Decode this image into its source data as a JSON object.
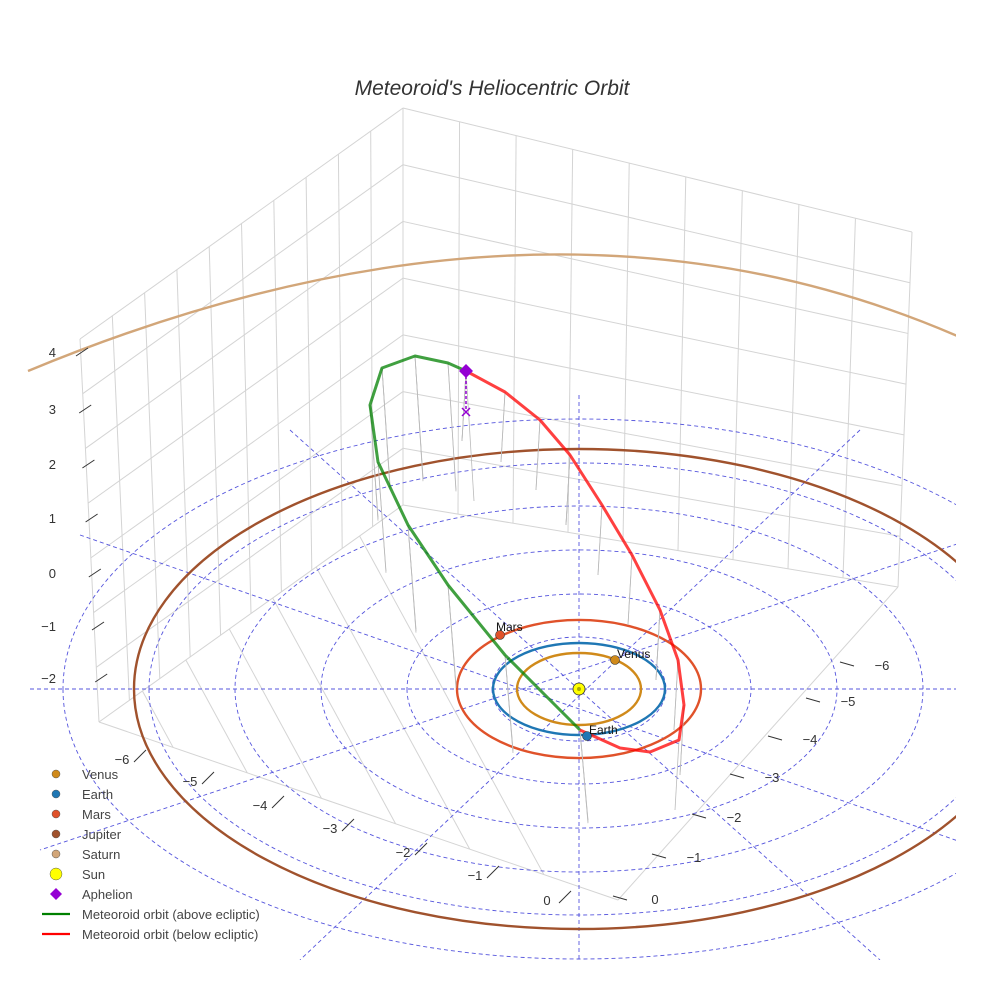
{
  "chart_data": {
    "type": "scatter",
    "subtype": "3d-orbit",
    "title": "Meteoroid's Heliocentric Orbit",
    "xlabel": "",
    "ylabel": "",
    "zlabel": "",
    "x_ticks": [
      "−6",
      "−5",
      "−4",
      "−3",
      "−2",
      "−1",
      "0"
    ],
    "y_ticks": [
      "−6",
      "−5",
      "−4",
      "−3",
      "−2",
      "−1",
      "0"
    ],
    "z_ticks": [
      "4",
      "3",
      "2",
      "1",
      "0",
      "−1",
      "−2"
    ],
    "grid": true,
    "ecliptic_rings_au": [
      1,
      2,
      3,
      4,
      5,
      6
    ],
    "legend_position": "bottom-left",
    "planet_labels": [
      "Mars",
      "Venus",
      "Earth"
    ],
    "legend": [
      {
        "label": "Venus",
        "color": "#d08a1a",
        "symbol": "circle"
      },
      {
        "label": "Earth",
        "color": "#1f77b4",
        "symbol": "circle"
      },
      {
        "label": "Mars",
        "color": "#e0522a",
        "symbol": "circle"
      },
      {
        "label": "Jupiter",
        "color": "#a0522d",
        "symbol": "circle"
      },
      {
        "label": "Saturn",
        "color": "#d2a679",
        "symbol": "circle"
      },
      {
        "label": "Sun",
        "color": "#ffff00",
        "symbol": "circle-large"
      },
      {
        "label": "Aphelion",
        "color": "#9400d3",
        "symbol": "diamond"
      },
      {
        "label": "Meteoroid orbit (above ecliptic)",
        "color": "#008000",
        "symbol": "line"
      },
      {
        "label": "Meteoroid orbit (below ecliptic)",
        "color": "#ff0000",
        "symbol": "line"
      }
    ],
    "planets": [
      {
        "name": "Venus",
        "orbit_radius_au": 0.72,
        "color": "#d08a1a",
        "position_au": [
          0.55,
          0.47,
          0
        ]
      },
      {
        "name": "Earth",
        "orbit_radius_au": 1.0,
        "color": "#1f77b4",
        "position_au": [
          -0.6,
          -0.8,
          0
        ]
      },
      {
        "name": "Mars",
        "orbit_radius_au": 1.52,
        "color": "#e0522a",
        "position_au": [
          -0.9,
          1.22,
          0
        ]
      },
      {
        "name": "Jupiter",
        "orbit_radius_au": 5.2,
        "color": "#a0522d"
      },
      {
        "name": "Saturn",
        "orbit_radius_au": 9.5,
        "color": "#d2a679"
      }
    ],
    "sun": {
      "position_au": [
        0,
        0,
        0
      ],
      "color": "#ffff00"
    },
    "aphelion": {
      "position_au": [
        -4.3,
        2.9,
        3.3
      ],
      "color": "#9400d3"
    },
    "meteoroid_orbit": {
      "above_color": "#008000",
      "below_color": "#ff0000",
      "perihelion_au": 1.0,
      "aphelion_au": 6.0
    }
  }
}
